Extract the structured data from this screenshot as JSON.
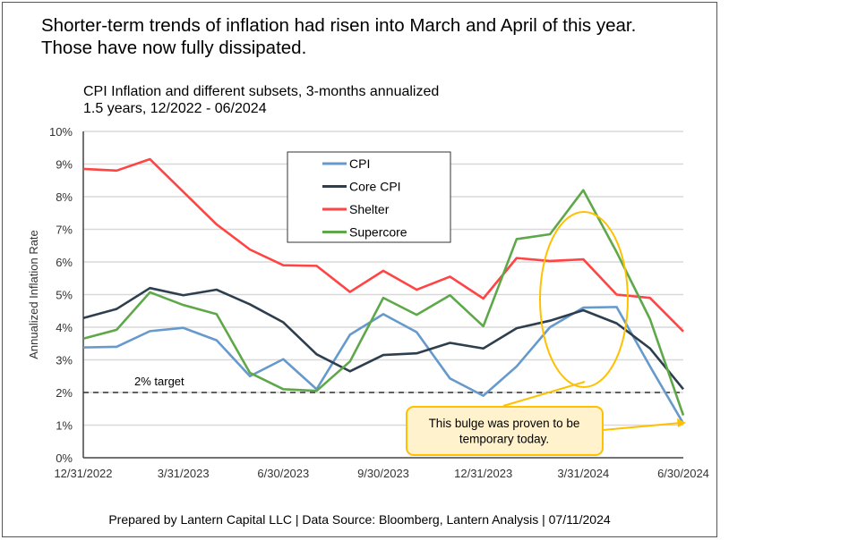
{
  "headline": [
    "Shorter-term trends of inflation had risen into March and April of this year.",
    "Those have now fully dissipated."
  ],
  "footer": "Prepared by Lantern Capital LLC | Data Source: Bloomberg, Lantern Analysis | 07/11/2024",
  "chart_data": {
    "type": "line",
    "title": "CPI Inflation and different subsets, 3-months annualized",
    "subtitle": "1.5 years, 12/2022 - 06/2024",
    "ylabel": "Annualized Inflation Rate",
    "xlabel": "",
    "ylim": [
      0,
      10
    ],
    "yticks": [
      "0%",
      "1%",
      "2%",
      "3%",
      "4%",
      "5%",
      "6%",
      "7%",
      "8%",
      "9%",
      "10%"
    ],
    "x": [
      "12/31/2022",
      "1/31/2023",
      "2/28/2023",
      "3/31/2023",
      "4/30/2023",
      "5/31/2023",
      "6/30/2023",
      "7/31/2023",
      "8/31/2023",
      "9/30/2023",
      "10/31/2023",
      "11/30/2023",
      "12/31/2023",
      "1/31/2024",
      "2/29/2024",
      "3/31/2024",
      "4/30/2024",
      "5/31/2024",
      "6/30/2024"
    ],
    "xtick_labels": [
      "12/31/2022",
      "3/31/2023",
      "6/30/2023",
      "9/30/2023",
      "12/31/2023",
      "3/31/2024",
      "6/30/2024"
    ],
    "grid": true,
    "legend": "top-center",
    "series": [
      {
        "name": "CPI",
        "color": "#6699cc",
        "values": [
          3.38,
          3.4,
          3.88,
          3.98,
          3.6,
          2.5,
          3.02,
          2.1,
          3.77,
          4.4,
          3.85,
          2.43,
          1.9,
          2.8,
          4.0,
          4.6,
          4.62,
          2.8,
          1.05
        ]
      },
      {
        "name": "Core CPI",
        "color": "#2d3e4e",
        "values": [
          4.28,
          4.56,
          5.2,
          4.98,
          5.15,
          4.7,
          4.15,
          3.17,
          2.65,
          3.15,
          3.2,
          3.52,
          3.35,
          3.97,
          4.2,
          4.52,
          4.12,
          3.35,
          2.1
        ]
      },
      {
        "name": "Shelter",
        "color": "#ff4444",
        "values": [
          8.85,
          8.8,
          9.15,
          8.15,
          7.15,
          6.38,
          5.9,
          5.88,
          5.08,
          5.73,
          5.15,
          5.55,
          4.88,
          6.12,
          6.03,
          6.08,
          5.0,
          4.9,
          3.87
        ]
      },
      {
        "name": "Supercore",
        "color": "#5ea84a",
        "values": [
          3.65,
          3.92,
          5.07,
          4.68,
          4.4,
          2.6,
          2.1,
          2.05,
          2.95,
          4.9,
          4.38,
          4.98,
          4.03,
          6.7,
          6.85,
          8.2,
          6.3,
          4.25,
          1.3
        ]
      }
    ],
    "reference_line": {
      "value": 2,
      "label": "2% target"
    },
    "annotation": {
      "text": [
        "This bulge was proven to be",
        "temporary today."
      ],
      "highlight_color": "#ffc000",
      "box_fill": "#fff2cc"
    }
  }
}
